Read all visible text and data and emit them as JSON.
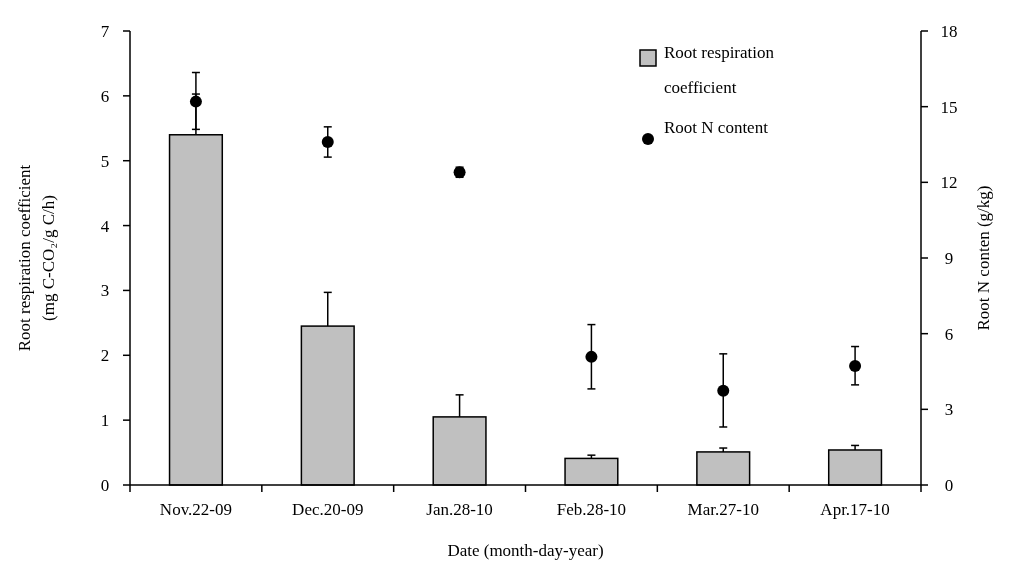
{
  "chart_data": {
    "type": "bar",
    "xlabel": "Date (month-day-year)",
    "ylabel": "Root respiration coefficient\n(mg C-CO₂/g C/h)",
    "y2label": "Root N conten (g/kg)",
    "categories": [
      "Nov.22-09",
      "Dec.20-09",
      "Jan.28-10",
      "Feb.28-10",
      "Mar.27-10",
      "Apr.17-10"
    ],
    "ylim": [
      0,
      7
    ],
    "yticks": [
      0,
      1,
      2,
      3,
      4,
      5,
      6,
      7
    ],
    "y2lim": [
      0,
      18
    ],
    "y2ticks": [
      0,
      3,
      6,
      9,
      12,
      15,
      18
    ],
    "legend": "top right",
    "grid": false,
    "series": [
      {
        "name": "Root respiration coefficient",
        "color": "#c0c0c0",
        "values": [
          5.4,
          2.45,
          1.05,
          0.41,
          0.51,
          0.54
        ],
        "errors": [
          [
            5.4,
            6.36
          ],
          [
            2.45,
            2.97
          ],
          [
            1.05,
            1.39
          ],
          [
            0.41,
            0.46
          ],
          [
            0.51,
            0.57
          ],
          [
            0.54,
            0.61
          ]
        ]
      },
      {
        "name": "Root N content",
        "type": "scatter",
        "axis": "y2",
        "marker": "circle",
        "color": "#000000",
        "x": [
          "Nov.22-09",
          "Dec.20-09",
          "Jan.28-10",
          "Feb.28-10",
          "Mar.27-10",
          "Apr.17-10"
        ],
        "values": [
          15.2,
          13.6,
          12.4,
          5.08,
          3.74,
          4.72
        ],
        "errors": [
          [
            14.1,
            15.5
          ],
          [
            13.0,
            14.2
          ],
          [
            12.2,
            12.6
          ],
          [
            3.81,
            6.36
          ],
          [
            2.3,
            5.2
          ],
          [
            3.97,
            5.49
          ]
        ]
      }
    ]
  }
}
